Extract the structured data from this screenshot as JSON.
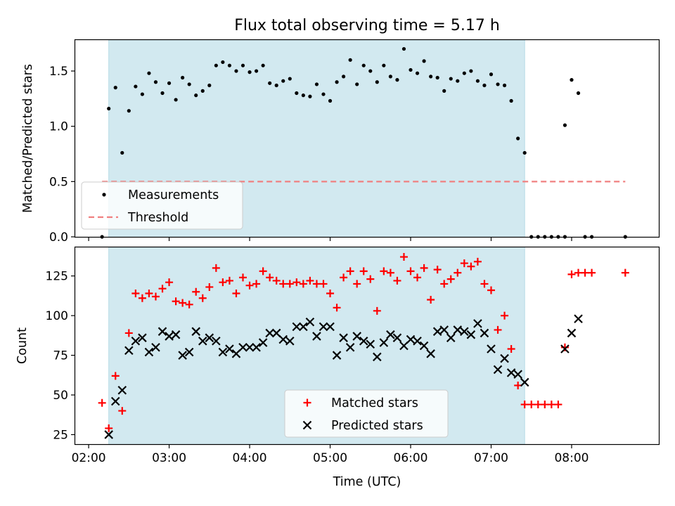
{
  "title": "Flux total observing time = 5.17 h",
  "chart_data": [
    {
      "type": "scatter",
      "ylabel": "Matched/Predicted stars",
      "ylim": [
        0,
        1.78
      ],
      "yticks": [
        0.0,
        0.5,
        1.0,
        1.5
      ],
      "ytick_labels": [
        "0.0",
        "0.5",
        "1.0",
        "1.5"
      ],
      "xlim": [
        "01:50",
        "09:05"
      ],
      "shaded_span": [
        "02:15",
        "07:25"
      ],
      "shade_color": "#d2e9f0",
      "legend_position": "lower-left",
      "series": [
        {
          "name": "Measurements",
          "marker": "dot",
          "color": "#000000",
          "points": [
            [
              "02:10",
              0.0
            ],
            [
              "02:15",
              1.16
            ],
            [
              "02:20",
              1.35
            ],
            [
              "02:25",
              0.76
            ],
            [
              "02:30",
              1.14
            ],
            [
              "02:35",
              1.36
            ],
            [
              "02:40",
              1.29
            ],
            [
              "02:45",
              1.48
            ],
            [
              "02:50",
              1.4
            ],
            [
              "02:55",
              1.3
            ],
            [
              "03:00",
              1.39
            ],
            [
              "03:05",
              1.24
            ],
            [
              "03:10",
              1.44
            ],
            [
              "03:15",
              1.38
            ],
            [
              "03:20",
              1.28
            ],
            [
              "03:25",
              1.32
            ],
            [
              "03:30",
              1.37
            ],
            [
              "03:35",
              1.55
            ],
            [
              "03:40",
              1.58
            ],
            [
              "03:45",
              1.55
            ],
            [
              "03:50",
              1.5
            ],
            [
              "03:55",
              1.55
            ],
            [
              "04:00",
              1.49
            ],
            [
              "04:05",
              1.5
            ],
            [
              "04:10",
              1.55
            ],
            [
              "04:15",
              1.39
            ],
            [
              "04:20",
              1.37
            ],
            [
              "04:25",
              1.41
            ],
            [
              "04:30",
              1.43
            ],
            [
              "04:35",
              1.3
            ],
            [
              "04:40",
              1.28
            ],
            [
              "04:45",
              1.27
            ],
            [
              "04:50",
              1.38
            ],
            [
              "04:55",
              1.29
            ],
            [
              "05:00",
              1.23
            ],
            [
              "05:05",
              1.4
            ],
            [
              "05:10",
              1.45
            ],
            [
              "05:15",
              1.6
            ],
            [
              "05:20",
              1.38
            ],
            [
              "05:25",
              1.55
            ],
            [
              "05:30",
              1.5
            ],
            [
              "05:35",
              1.4
            ],
            [
              "05:40",
              1.55
            ],
            [
              "05:45",
              1.45
            ],
            [
              "05:50",
              1.42
            ],
            [
              "05:55",
              1.7
            ],
            [
              "06:00",
              1.51
            ],
            [
              "06:05",
              1.48
            ],
            [
              "06:10",
              1.59
            ],
            [
              "06:15",
              1.45
            ],
            [
              "06:20",
              1.44
            ],
            [
              "06:25",
              1.32
            ],
            [
              "06:30",
              1.43
            ],
            [
              "06:35",
              1.41
            ],
            [
              "06:40",
              1.48
            ],
            [
              "06:45",
              1.5
            ],
            [
              "06:50",
              1.41
            ],
            [
              "06:55",
              1.37
            ],
            [
              "07:00",
              1.47
            ],
            [
              "07:05",
              1.38
            ],
            [
              "07:10",
              1.37
            ],
            [
              "07:15",
              1.23
            ],
            [
              "07:20",
              0.89
            ],
            [
              "07:25",
              0.76
            ],
            [
              "07:30",
              0.0
            ],
            [
              "07:35",
              0.0
            ],
            [
              "07:40",
              0.0
            ],
            [
              "07:45",
              0.0
            ],
            [
              "07:50",
              0.0
            ],
            [
              "07:55",
              0.0
            ],
            [
              "07:55",
              1.01
            ],
            [
              "08:00",
              1.42
            ],
            [
              "08:05",
              1.3
            ],
            [
              "08:10",
              0.0
            ],
            [
              "08:15",
              0.0
            ],
            [
              "08:40",
              0.0
            ]
          ]
        },
        {
          "name": "Threshold",
          "marker": "dashed-line",
          "color": "#f08080",
          "points": [
            [
              "02:10",
              0.5
            ],
            [
              "08:40",
              0.5
            ]
          ]
        }
      ]
    },
    {
      "type": "scatter",
      "xlabel": "Time (UTC)",
      "ylabel": "Count",
      "ylim": [
        19,
        143
      ],
      "yticks": [
        25,
        50,
        75,
        100,
        125
      ],
      "ytick_labels": [
        "25",
        "50",
        "75",
        "100",
        "125"
      ],
      "xlim": [
        "01:50",
        "09:05"
      ],
      "xticks": [
        "02:00",
        "03:00",
        "04:00",
        "05:00",
        "06:00",
        "07:00",
        "08:00"
      ],
      "xtick_labels": [
        "02:00",
        "03:00",
        "04:00",
        "05:00",
        "06:00",
        "07:00",
        "08:00"
      ],
      "shaded_span": [
        "02:15",
        "07:25"
      ],
      "shade_color": "#d2e9f0",
      "legend_position": "lower-center",
      "series": [
        {
          "name": "Matched stars",
          "marker": "plus",
          "color": "#ff0000",
          "points": [
            [
              "02:10",
              45
            ],
            [
              "02:15",
              29
            ],
            [
              "02:20",
              62
            ],
            [
              "02:25",
              40
            ],
            [
              "02:30",
              89
            ],
            [
              "02:35",
              114
            ],
            [
              "02:40",
              111
            ],
            [
              "02:45",
              114
            ],
            [
              "02:50",
              112
            ],
            [
              "02:55",
              117
            ],
            [
              "03:00",
              121
            ],
            [
              "03:05",
              109
            ],
            [
              "03:10",
              108
            ],
            [
              "03:15",
              107
            ],
            [
              "03:20",
              115
            ],
            [
              "03:25",
              111
            ],
            [
              "03:30",
              118
            ],
            [
              "03:35",
              130
            ],
            [
              "03:40",
              121
            ],
            [
              "03:45",
              122
            ],
            [
              "03:50",
              114
            ],
            [
              "03:55",
              124
            ],
            [
              "04:00",
              119
            ],
            [
              "04:05",
              120
            ],
            [
              "04:10",
              128
            ],
            [
              "04:15",
              124
            ],
            [
              "04:20",
              122
            ],
            [
              "04:25",
              120
            ],
            [
              "04:30",
              120
            ],
            [
              "04:35",
              121
            ],
            [
              "04:40",
              120
            ],
            [
              "04:45",
              122
            ],
            [
              "04:50",
              120
            ],
            [
              "04:55",
              120
            ],
            [
              "05:00",
              114
            ],
            [
              "05:05",
              105
            ],
            [
              "05:10",
              124
            ],
            [
              "05:15",
              128
            ],
            [
              "05:20",
              120
            ],
            [
              "05:25",
              128
            ],
            [
              "05:30",
              123
            ],
            [
              "05:35",
              103
            ],
            [
              "05:40",
              128
            ],
            [
              "05:45",
              127
            ],
            [
              "05:50",
              122
            ],
            [
              "05:55",
              137
            ],
            [
              "06:00",
              128
            ],
            [
              "06:05",
              124
            ],
            [
              "06:10",
              130
            ],
            [
              "06:15",
              110
            ],
            [
              "06:20",
              129
            ],
            [
              "06:25",
              120
            ],
            [
              "06:30",
              123
            ],
            [
              "06:35",
              127
            ],
            [
              "06:40",
              133
            ],
            [
              "06:45",
              131
            ],
            [
              "06:50",
              134
            ],
            [
              "06:55",
              120
            ],
            [
              "07:00",
              116
            ],
            [
              "07:05",
              91
            ],
            [
              "07:10",
              100
            ],
            [
              "07:15",
              79
            ],
            [
              "07:20",
              56
            ],
            [
              "07:25",
              44
            ],
            [
              "07:30",
              44
            ],
            [
              "07:35",
              44
            ],
            [
              "07:40",
              44
            ],
            [
              "07:45",
              44
            ],
            [
              "07:50",
              44
            ],
            [
              "07:55",
              80
            ],
            [
              "08:00",
              126
            ],
            [
              "08:05",
              127
            ],
            [
              "08:10",
              127
            ],
            [
              "08:15",
              127
            ],
            [
              "08:40",
              127
            ]
          ]
        },
        {
          "name": "Predicted stars",
          "marker": "x",
          "color": "#000000",
          "points": [
            [
              "02:15",
              25
            ],
            [
              "02:20",
              46
            ],
            [
              "02:25",
              53
            ],
            [
              "02:30",
              78
            ],
            [
              "02:35",
              84
            ],
            [
              "02:40",
              86
            ],
            [
              "02:45",
              77
            ],
            [
              "02:50",
              80
            ],
            [
              "02:55",
              90
            ],
            [
              "03:00",
              87
            ],
            [
              "03:05",
              88
            ],
            [
              "03:10",
              75
            ],
            [
              "03:15",
              77
            ],
            [
              "03:20",
              90
            ],
            [
              "03:25",
              84
            ],
            [
              "03:30",
              86
            ],
            [
              "03:35",
              84
            ],
            [
              "03:40",
              77
            ],
            [
              "03:45",
              79
            ],
            [
              "03:50",
              76
            ],
            [
              "03:55",
              80
            ],
            [
              "04:00",
              80
            ],
            [
              "04:05",
              80
            ],
            [
              "04:10",
              83
            ],
            [
              "04:15",
              89
            ],
            [
              "04:20",
              89
            ],
            [
              "04:25",
              85
            ],
            [
              "04:30",
              84
            ],
            [
              "04:35",
              93
            ],
            [
              "04:40",
              93
            ],
            [
              "04:45",
              96
            ],
            [
              "04:50",
              87
            ],
            [
              "04:55",
              93
            ],
            [
              "05:00",
              93
            ],
            [
              "05:05",
              75
            ],
            [
              "05:10",
              86
            ],
            [
              "05:15",
              80
            ],
            [
              "05:20",
              87
            ],
            [
              "05:25",
              84
            ],
            [
              "05:30",
              82
            ],
            [
              "05:35",
              74
            ],
            [
              "05:40",
              83
            ],
            [
              "05:45",
              88
            ],
            [
              "05:50",
              86
            ],
            [
              "05:55",
              81
            ],
            [
              "06:00",
              85
            ],
            [
              "06:05",
              84
            ],
            [
              "06:10",
              81
            ],
            [
              "06:15",
              76
            ],
            [
              "06:20",
              90
            ],
            [
              "06:25",
              91
            ],
            [
              "06:30",
              86
            ],
            [
              "06:35",
              91
            ],
            [
              "06:40",
              90
            ],
            [
              "06:45",
              88
            ],
            [
              "06:50",
              95
            ],
            [
              "06:55",
              89
            ],
            [
              "07:00",
              79
            ],
            [
              "07:05",
              66
            ],
            [
              "07:10",
              73
            ],
            [
              "07:15",
              64
            ],
            [
              "07:20",
              63
            ],
            [
              "07:25",
              58
            ],
            [
              "07:55",
              79
            ],
            [
              "08:00",
              89
            ],
            [
              "08:05",
              98
            ]
          ]
        }
      ]
    }
  ]
}
